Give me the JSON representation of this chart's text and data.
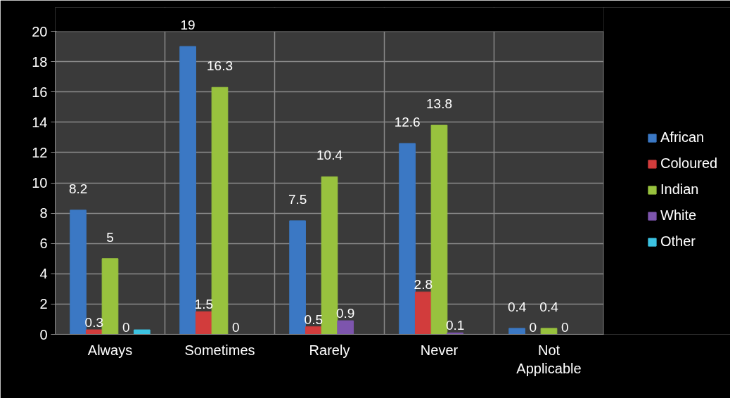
{
  "chart_data": {
    "type": "bar",
    "categories": [
      "Always",
      "Sometimes",
      "Rarely",
      "Never",
      "Not Applicable"
    ],
    "series": [
      {
        "name": "African",
        "color": "#3b78c4",
        "values": [
          8.2,
          19,
          7.5,
          12.6,
          0.4
        ],
        "value_labels": [
          "8.2",
          "19",
          "7.5",
          "12.6",
          "0.4"
        ]
      },
      {
        "name": "Coloured",
        "color": "#d23c3c",
        "values": [
          0.3,
          1.5,
          0.5,
          2.8,
          0
        ],
        "value_labels": [
          "0.3",
          "1.5",
          "0.5",
          "2.8",
          "0"
        ]
      },
      {
        "name": "Indian",
        "color": "#98c23e",
        "values": [
          5,
          16.3,
          10.4,
          13.8,
          0.4
        ],
        "value_labels": [
          "5",
          "16.3",
          "10.4",
          "13.8",
          "0.4"
        ]
      },
      {
        "name": "White",
        "color": "#7d55ad",
        "values": [
          0,
          0,
          0.9,
          0.1,
          0
        ],
        "value_labels": [
          "0",
          "0",
          "0.9",
          "0.1",
          "0"
        ]
      },
      {
        "name": "Other",
        "color": "#3cc3e2",
        "values": [
          0.3,
          null,
          null,
          null,
          null
        ],
        "value_labels": [
          null,
          null,
          null,
          null,
          null
        ]
      }
    ],
    "ylim": [
      0,
      20
    ],
    "yticks": [
      0,
      2,
      4,
      6,
      8,
      10,
      12,
      14,
      16,
      18,
      20
    ],
    "grid": true,
    "legend": "right"
  }
}
